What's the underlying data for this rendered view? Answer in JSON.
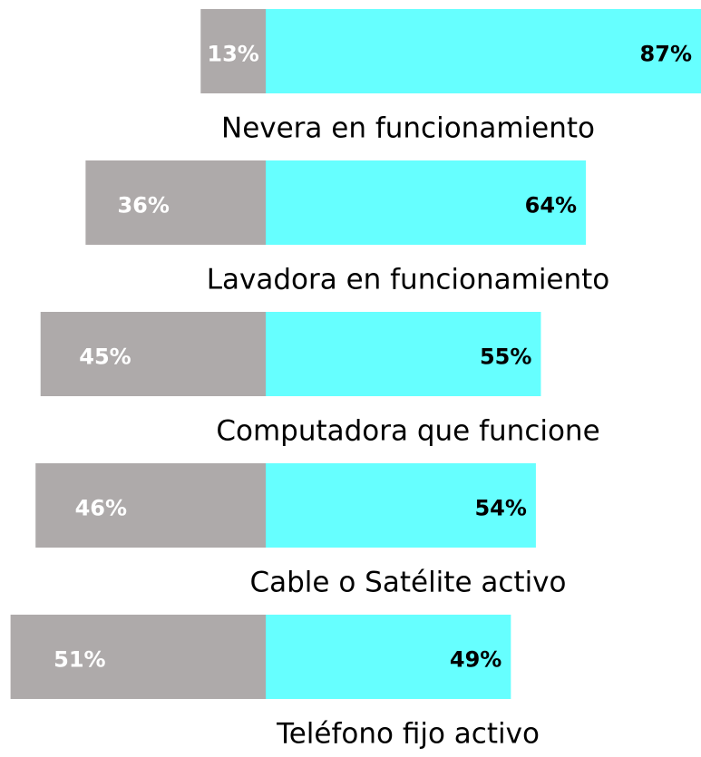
{
  "chart_data": {
    "type": "diverging-bar",
    "categories": [
      "Nevera en funcionamiento",
      "Lavadora en funcionamiento",
      "Computadora que funcione",
      "Cable o Satélite activo",
      "Teléfono fijo activo"
    ],
    "series": [
      {
        "color": "#aeaaaa",
        "values": [
          13,
          36,
          45,
          46,
          51
        ],
        "value_labels": [
          "13%",
          "36%",
          "45%",
          "46%",
          "51%"
        ]
      },
      {
        "color": "#66ffff",
        "values": [
          87,
          64,
          55,
          54,
          49
        ],
        "value_labels": [
          "87%",
          "64%",
          "55%",
          "54%",
          "49%"
        ]
      }
    ]
  }
}
